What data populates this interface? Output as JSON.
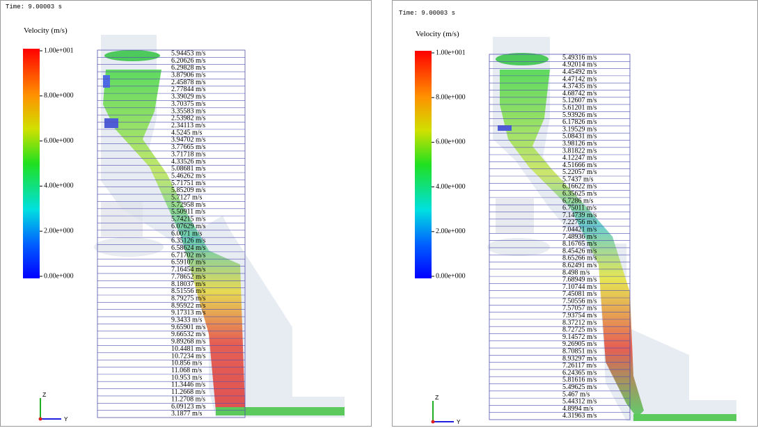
{
  "panels": [
    {
      "time": "Time: 9.00003 s",
      "legend_title": "Velocity (m/s)",
      "legend_ticks": [
        "1.00e+001",
        "8.00e+000",
        "6.00e+000",
        "4.00e+000",
        "2.00e+000",
        "0.00e+000"
      ],
      "rows": [
        "5.94453 m/s",
        "6.20626 m/s",
        "6.29828 m/s",
        "3.87906 m/s",
        "2.45878 m/s",
        "2.77844 m/s",
        "3.39029 m/s",
        "3.70375 m/s",
        "3.35583 m/s",
        "2.53982 m/s",
        "2.34113 m/s",
        "4.5245 m/s",
        "3.94702 m/s",
        "3.77665 m/s",
        "3.71718 m/s",
        "4.33526 m/s",
        "5.08681 m/s",
        "5.46262 m/s",
        "5.71751 m/s",
        "5.85209 m/s",
        "5.7127 m/s",
        "5.72958 m/s",
        "5.50911 m/s",
        "5.74215 m/s",
        "6.07629 m/s",
        "6.0071 m/s",
        "6.35126 m/s",
        "6.58624 m/s",
        "6.71702 m/s",
        "6.59107 m/s",
        "7.16454 m/s",
        "7.78652 m/s",
        "8.18037 m/s",
        "8.51556 m/s",
        "8.79275 m/s",
        "8.95922 m/s",
        "9.17313 m/s",
        "9.3433 m/s",
        "9.65901 m/s",
        "9.66532 m/s",
        "9.89268 m/s",
        "10.4481 m/s",
        "10.7234 m/s",
        "10.856 m/s",
        "11.068 m/s",
        "10.953 m/s",
        "11.3446 m/s",
        "11.2668 m/s",
        "11.2708 m/s",
        "6.09123 m/s",
        "3.1877 m/s"
      ],
      "axis_z": "Z",
      "axis_y": "Y"
    },
    {
      "time": "Time: 9.00003 s",
      "legend_title": "Velocity (m/s)",
      "legend_ticks": [
        "1.00e+001",
        "8.00e+000",
        "6.00e+000",
        "4.00e+000",
        "2.00e+000",
        "0.00e+000"
      ],
      "rows": [
        "5.49316 m/s",
        "4.92014 m/s",
        "4.45492 m/s",
        "4.47142 m/s",
        "4.37435 m/s",
        "4.68742 m/s",
        "5.12607 m/s",
        "5.61201 m/s",
        "5.93926 m/s",
        "6.17826 m/s",
        "3.19529 m/s",
        "5.08431 m/s",
        "3.98126 m/s",
        "3.81822 m/s",
        "4.12247 m/s",
        "4.51666 m/s",
        "5.22057 m/s",
        "5.7437 m/s",
        "6.16622 m/s",
        "6.35625 m/s",
        "6.7286 m/s",
        "6.75011 m/s",
        "7.14739 m/s",
        "7.22756 m/s",
        "7.04421 m/s",
        "7.48936 m/s",
        "8.16765 m/s",
        "8.45426 m/s",
        "8.65266 m/s",
        "8.62491 m/s",
        "8.498 m/s",
        "7.68949 m/s",
        "7.10744 m/s",
        "7.45081 m/s",
        "7.50556 m/s",
        "7.57057 m/s",
        "7.93754 m/s",
        "8.37212 m/s",
        "8.72725 m/s",
        "9.14572 m/s",
        "9.26905 m/s",
        "8.70851 m/s",
        "8.93297 m/s",
        "7.26117 m/s",
        "6.24365 m/s",
        "5.81616 m/s",
        "5.49625 m/s",
        "5.467 m/s",
        "5.44312 m/s",
        "4.8994 m/s",
        "4.31963 m/s"
      ],
      "axis_z": "Z",
      "axis_y": "Y"
    }
  ]
}
